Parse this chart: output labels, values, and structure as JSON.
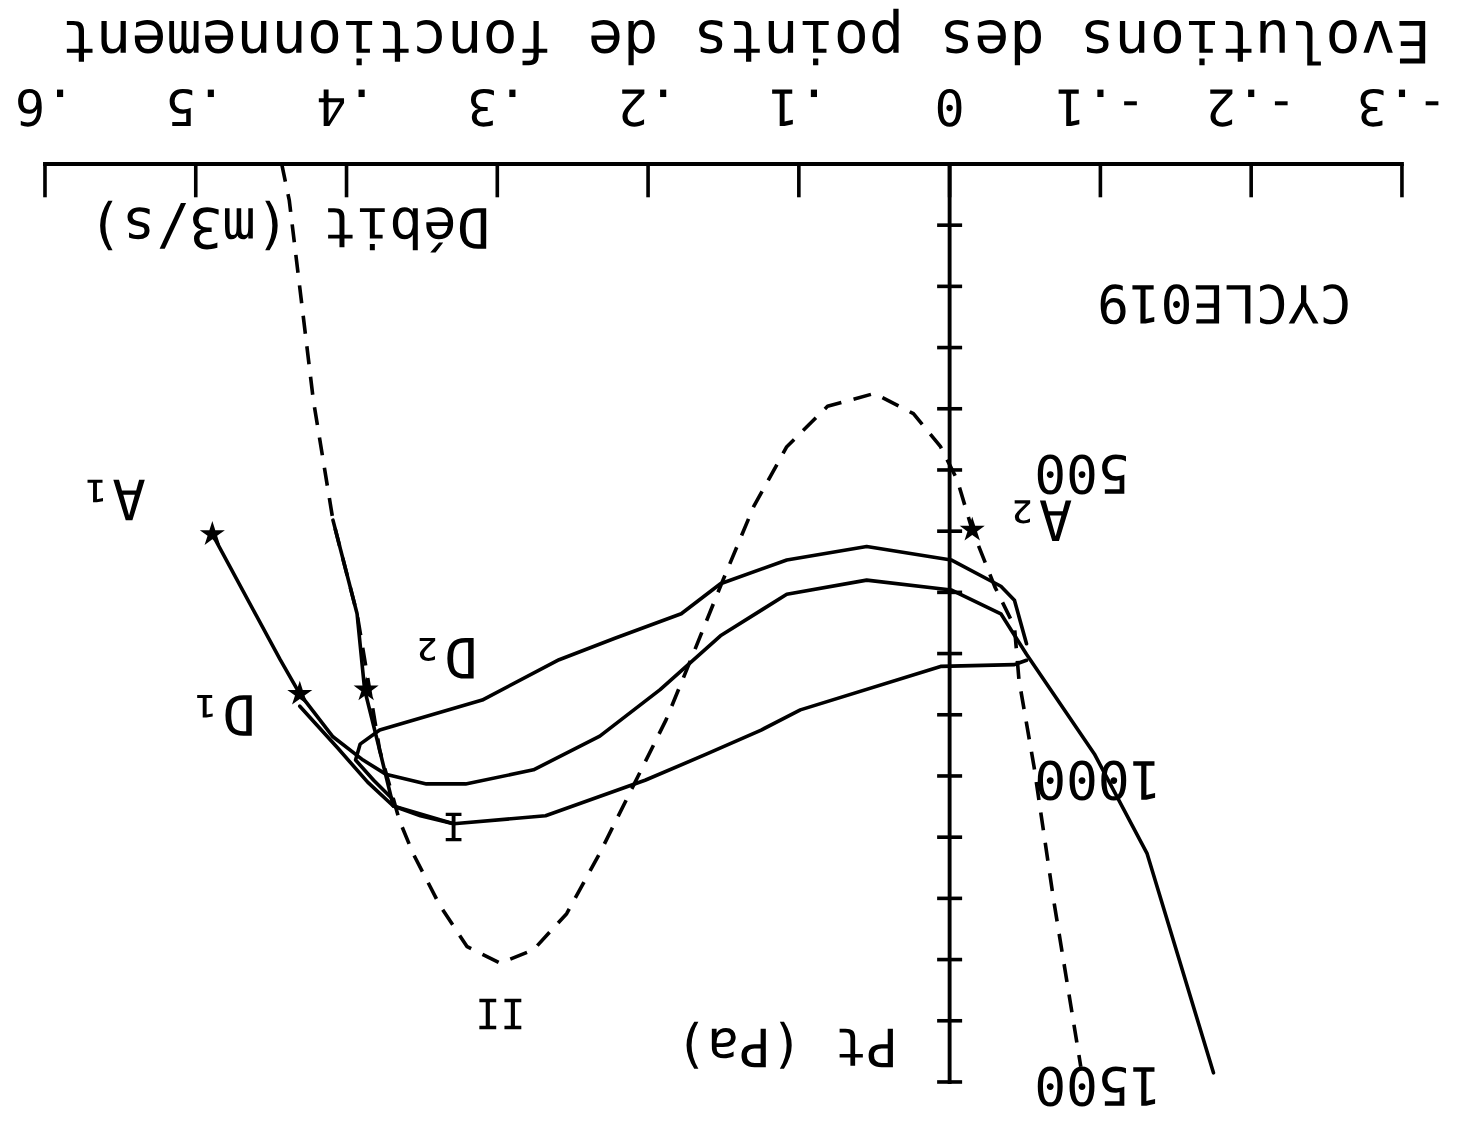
{
  "chart_data": {
    "type": "line",
    "title": "Evolutions des points de fonctionnement",
    "xlabel": "Débit (m3/s)",
    "ylabel": "Pt (Pa)",
    "xlim": [
      0.6,
      -0.3
    ],
    "ylim": [
      1500,
      0
    ],
    "xticks": [
      {
        "value": 0.6,
        "label": ".6"
      },
      {
        "value": 0.5,
        "label": ".5"
      },
      {
        "value": 0.4,
        "label": ".4"
      },
      {
        "value": 0.3,
        "label": ".3"
      },
      {
        "value": 0.2,
        "label": ".2"
      },
      {
        "value": 0.1,
        "label": ".1"
      },
      0,
      {
        "value": -0.1,
        "label": "-.1"
      },
      {
        "value": -0.2,
        "label": "-.2"
      },
      {
        "value": -0.3,
        "label": "-.3"
      }
    ],
    "yticks": [
      {
        "value": 100,
        "label": null
      },
      {
        "value": 200,
        "label": null
      },
      {
        "value": 300,
        "label": null
      },
      {
        "value": 400,
        "label": null
      },
      500,
      {
        "value": 600,
        "label": null
      },
      {
        "value": 700,
        "label": null
      },
      {
        "value": 800,
        "label": null
      },
      {
        "value": 900,
        "label": null
      },
      1000,
      {
        "value": 1100,
        "label": null
      },
      {
        "value": 1200,
        "label": null
      },
      {
        "value": 1300,
        "label": null
      },
      {
        "value": 1400,
        "label": null
      },
      1500
    ],
    "series": [
      {
        "color": "#000000",
        "line_style": "solid",
        "x": [
          0.489,
          0.444,
          0.431,
          0.409,
          0.389,
          0.374,
          0.347,
          0.321,
          0.276,
          0.232,
          0.192,
          0.152,
          0.108,
          0.055,
          -0.001,
          -0.034,
          -0.051,
          -0.096,
          -0.131,
          -0.175
        ],
        "values": [
          605,
          810,
          866,
          936,
          974,
          997,
          1013,
          1013,
          990,
          935,
          859,
          771,
          703,
          680,
          696,
          735,
          801,
          964,
          1127,
          1485
        ]
      },
      {
        "color": "#000000",
        "line_style": "dashed",
        "x": [
          0.443,
          0.438,
          0.422,
          0.409,
          0.393,
          0.378,
          0.365,
          0.356,
          0.338,
          0.32,
          0.298,
          0.276,
          0.254,
          0.232,
          0.21,
          0.188,
          0.17,
          0.152,
          0.13,
          0.108,
          0.081,
          0.05,
          0.024,
          0.006,
          -0.005,
          -0.015,
          -0.03,
          -0.043,
          -0.046,
          -0.056,
          -0.069,
          -0.087
        ],
        "values": [
          0,
          59,
          386,
          582,
          735,
          958,
          1072,
          1126,
          1212,
          1279,
          1306,
          1284,
          1225,
          1126,
          1017,
          908,
          800,
          690,
          560,
          462,
          396,
          375,
          408,
          462,
          516,
          598,
          691,
          756,
          843,
          985,
          1203,
          1475
        ]
      },
      {
        "color": "#000000",
        "line_style": "solid",
        "x": [
          0.409,
          0.393,
          0.388,
          0.378,
          0.369,
          0.351,
          0.329
        ],
        "values": [
          582,
          735,
          859,
          958,
          1049,
          1065,
          1078
        ]
      },
      {
        "color": "#000000",
        "line_style": "solid",
        "x": [
          -0.051,
          -0.043,
          -0.034,
          -0.001,
          0.055,
          0.108,
          0.152,
          0.178,
          0.222,
          0.259,
          0.31,
          0.378,
          0.391,
          0.394,
          0.382,
          0.369
        ],
        "values": [
          784,
          713,
          690,
          647,
          625,
          647,
          686,
          735,
          775,
          810,
          876,
          925,
          948,
          974,
          1007,
          1039
        ]
      },
      {
        "color": "#000000",
        "line_style": "solid",
        "x": [
          0.431,
          0.406,
          0.386,
          0.369,
          0.329,
          0.268,
          0.202,
          0.161,
          0.125,
          0.099,
          0.006,
          -0.043,
          -0.051
        ],
        "values": [
          886,
          954,
          1010,
          1049,
          1078,
          1065,
          1007,
          964,
          925,
          892,
          821,
          818,
          811
        ]
      },
      {
        "type": "scatter",
        "color": "#000000",
        "marker": "star",
        "x": [
          0.489,
          -0.015,
          0.431,
          0.387
        ],
        "values": [
          605,
          598,
          866,
          859
        ]
      }
    ],
    "annotations": [
      "CYCLE019",
      {
        "text": "A₁",
        "x": 0.489,
        "y": 605
      },
      {
        "text": "A₂",
        "x": -0.015,
        "y": 598
      },
      {
        "text": "D₁",
        "x": 0.431,
        "y": 866
      },
      {
        "text": "D₂",
        "x": 0.387,
        "y": 859
      },
      {
        "text": "I",
        "x": 0.329,
        "y": 1078
      },
      {
        "text": "II",
        "x": 0.298,
        "y": 1306
      }
    ]
  }
}
